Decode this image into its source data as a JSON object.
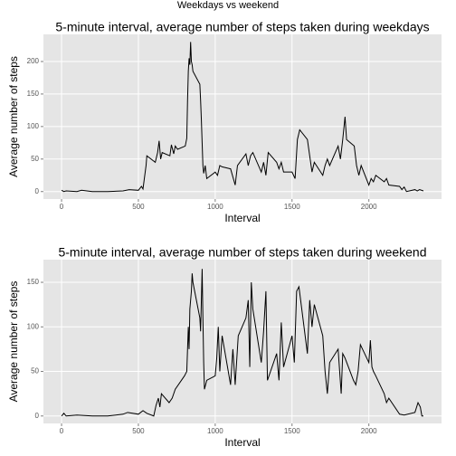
{
  "title": "Weekdays vs weekend",
  "chart_data": [
    {
      "type": "line",
      "title": "5-minute interval, average number of steps taken during weekdays",
      "x_label": "Interval",
      "y_label": "Average number of steps",
      "color": "#000000",
      "grid": true,
      "xlim": [
        -118,
        2473
      ],
      "ylim": [
        -11.5,
        241.7
      ],
      "xticks": [
        0,
        500,
        1000,
        1500,
        2000
      ],
      "yticks": [
        0,
        50,
        100,
        150,
        200
      ],
      "x": [
        0,
        15,
        30,
        100,
        130,
        200,
        300,
        400,
        440,
        500,
        520,
        530,
        550,
        555,
        610,
        625,
        635,
        645,
        655,
        705,
        715,
        730,
        740,
        755,
        805,
        815,
        820,
        825,
        830,
        835,
        840,
        845,
        850,
        855,
        900,
        905,
        910,
        915,
        920,
        925,
        935,
        945,
        1000,
        1015,
        1030,
        1045,
        1100,
        1130,
        1145,
        1200,
        1215,
        1230,
        1245,
        1300,
        1315,
        1330,
        1345,
        1400,
        1415,
        1430,
        1445,
        1500,
        1520,
        1535,
        1550,
        1600,
        1615,
        1630,
        1645,
        1700,
        1715,
        1730,
        1745,
        1800,
        1815,
        1830,
        1845,
        1855,
        1905,
        1920,
        1935,
        1950,
        2000,
        2015,
        2030,
        2045,
        2100,
        2115,
        2130,
        2200,
        2215,
        2230,
        2245,
        2300,
        2315,
        2330,
        2355
      ],
      "values": [
        2,
        0,
        1,
        0,
        2,
        0,
        0,
        1,
        3,
        2,
        8,
        4,
        40,
        55,
        45,
        60,
        78,
        50,
        60,
        55,
        72,
        58,
        70,
        65,
        70,
        82,
        140,
        185,
        205,
        195,
        230,
        200,
        195,
        185,
        165,
        140,
        110,
        75,
        40,
        28,
        40,
        20,
        30,
        25,
        40,
        38,
        35,
        10,
        40,
        58,
        40,
        55,
        60,
        30,
        45,
        25,
        60,
        45,
        35,
        45,
        30,
        30,
        20,
        80,
        95,
        80,
        55,
        30,
        45,
        25,
        40,
        50,
        40,
        70,
        50,
        80,
        115,
        80,
        70,
        40,
        25,
        40,
        10,
        20,
        15,
        25,
        15,
        20,
        10,
        8,
        3,
        7,
        0,
        3,
        1,
        3,
        1
      ]
    },
    {
      "type": "line",
      "title": "5-minute interval, average number of steps taken during weekend",
      "x_label": "Interval",
      "y_label": "Average number of steps",
      "color": "#000000",
      "grid": true,
      "xlim": [
        -118,
        2473
      ],
      "ylim": [
        -8.35,
        175.4
      ],
      "xticks": [
        0,
        500,
        1000,
        1500,
        2000
      ],
      "yticks": [
        0,
        50,
        100,
        150
      ],
      "x": [
        0,
        15,
        30,
        100,
        200,
        300,
        400,
        430,
        500,
        530,
        555,
        600,
        615,
        630,
        640,
        650,
        700,
        720,
        740,
        800,
        815,
        825,
        830,
        835,
        845,
        850,
        855,
        900,
        905,
        915,
        920,
        925,
        930,
        945,
        1000,
        1010,
        1020,
        1030,
        1045,
        1100,
        1115,
        1130,
        1150,
        1200,
        1215,
        1225,
        1235,
        1245,
        1300,
        1315,
        1330,
        1340,
        1400,
        1415,
        1430,
        1445,
        1500,
        1515,
        1530,
        1545,
        1600,
        1615,
        1630,
        1645,
        1700,
        1715,
        1730,
        1745,
        1800,
        1810,
        1820,
        1830,
        1845,
        1900,
        1915,
        1930,
        1945,
        2000,
        2010,
        2020,
        2030,
        2045,
        2100,
        2115,
        2130,
        2200,
        2230,
        2300,
        2320,
        2335,
        2345,
        2355
      ],
      "values": [
        0,
        3,
        0,
        1,
        0,
        0,
        2,
        4,
        2,
        6,
        3,
        0,
        12,
        20,
        10,
        25,
        15,
        20,
        30,
        45,
        50,
        100,
        75,
        120,
        140,
        160,
        150,
        110,
        95,
        165,
        110,
        60,
        30,
        40,
        45,
        65,
        100,
        50,
        90,
        35,
        75,
        35,
        90,
        110,
        130,
        55,
        150,
        120,
        60,
        95,
        140,
        40,
        70,
        40,
        105,
        55,
        90,
        60,
        140,
        145,
        70,
        130,
        100,
        125,
        90,
        50,
        25,
        60,
        75,
        50,
        25,
        70,
        65,
        40,
        35,
        50,
        80,
        60,
        85,
        55,
        50,
        45,
        25,
        15,
        20,
        2,
        1,
        4,
        15,
        10,
        0,
        0
      ]
    }
  ]
}
